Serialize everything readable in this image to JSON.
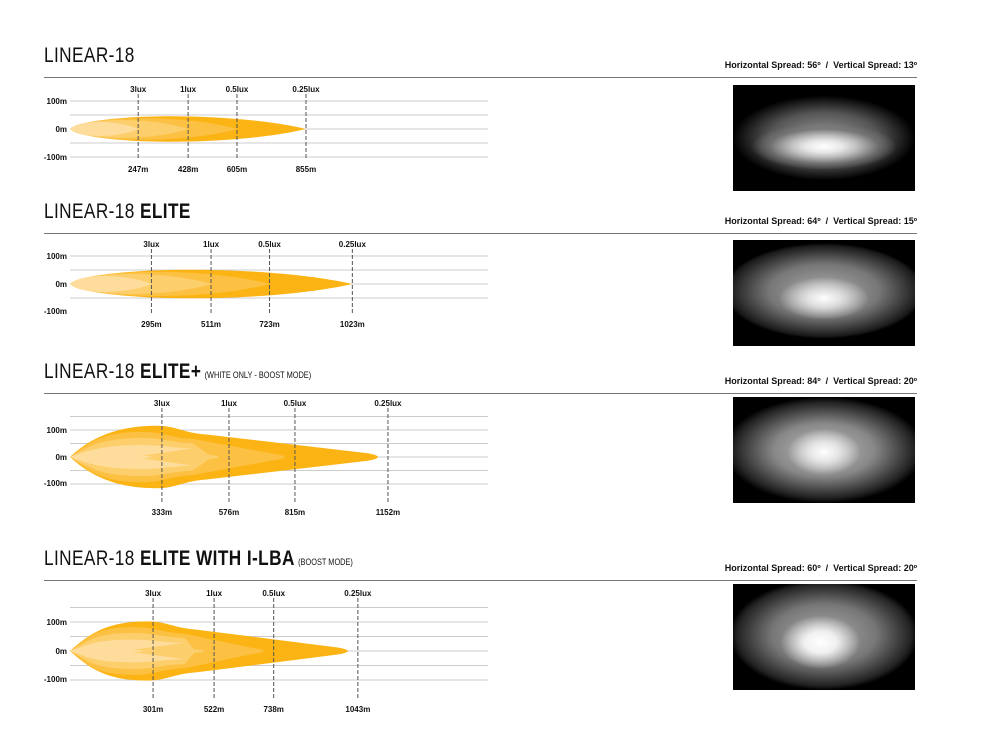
{
  "colors": {
    "zone1": "#fbb414",
    "zone2": "#fcc043",
    "zone3": "#fdce6c",
    "zone4": "#fedd9c",
    "grid": "#cccccc"
  },
  "sections": [
    {
      "title_main": "LINEAR-18",
      "title_bold": "",
      "title_note": "",
      "horizontal_spread": "Horizontal Spread: 56º",
      "vertical_spread": "Vertical Spread: 13º",
      "separator": "/",
      "y_labels": [
        "100m",
        "0m",
        "-100m"
      ],
      "lux_labels": [
        "3lux",
        "1lux",
        "0.5lux",
        "0.25lux"
      ],
      "distances_m": [
        247,
        428,
        605,
        855
      ],
      "distance_labels": [
        "247m",
        "428m",
        "605m",
        "855m"
      ],
      "beam_shape": "oval"
    },
    {
      "title_main": "LINEAR-18 ",
      "title_bold": "ELITE",
      "title_note": "",
      "horizontal_spread": "Horizontal Spread: 64º",
      "vertical_spread": "Vertical Spread: 15º",
      "separator": "/",
      "y_labels": [
        "100m",
        "0m",
        "-100m"
      ],
      "lux_labels": [
        "3lux",
        "1lux",
        "0.5lux",
        "0.25lux"
      ],
      "distances_m": [
        295,
        511,
        723,
        1023
      ],
      "distance_labels": [
        "295m",
        "511m",
        "723m",
        "1023m"
      ],
      "beam_shape": "oval"
    },
    {
      "title_main": "LINEAR-18 ",
      "title_bold": "ELITE+",
      "title_note": "(WHITE ONLY - BOOST MODE)",
      "horizontal_spread": "Horizontal Spread: 84º",
      "vertical_spread": "Vertical Spread: 20º",
      "separator": "/",
      "y_labels": [
        "100m",
        "0m",
        "-100m"
      ],
      "lux_labels": [
        "3lux",
        "1lux",
        "0.5lux",
        "0.25lux"
      ],
      "distances_m": [
        333,
        576,
        815,
        1152
      ],
      "distance_labels": [
        "333m",
        "576m",
        "815m",
        "1152m"
      ],
      "beam_shape": "wedge"
    },
    {
      "title_main": "LINEAR-18 ",
      "title_bold": "ELITE WITH I-LBA",
      "title_note": "(BOOST MODE)",
      "horizontal_spread": "Horizontal Spread: 60º",
      "vertical_spread": "Vertical Spread: 20º",
      "separator": "/",
      "y_labels": [
        "100m",
        "0m",
        "-100m"
      ],
      "lux_labels": [
        "3lux",
        "1lux",
        "0.5lux",
        "0.25lux"
      ],
      "distances_m": [
        301,
        522,
        738,
        1043
      ],
      "distance_labels": [
        "301m",
        "522m",
        "738m",
        "1043m"
      ],
      "beam_shape": "wedge"
    }
  ]
}
